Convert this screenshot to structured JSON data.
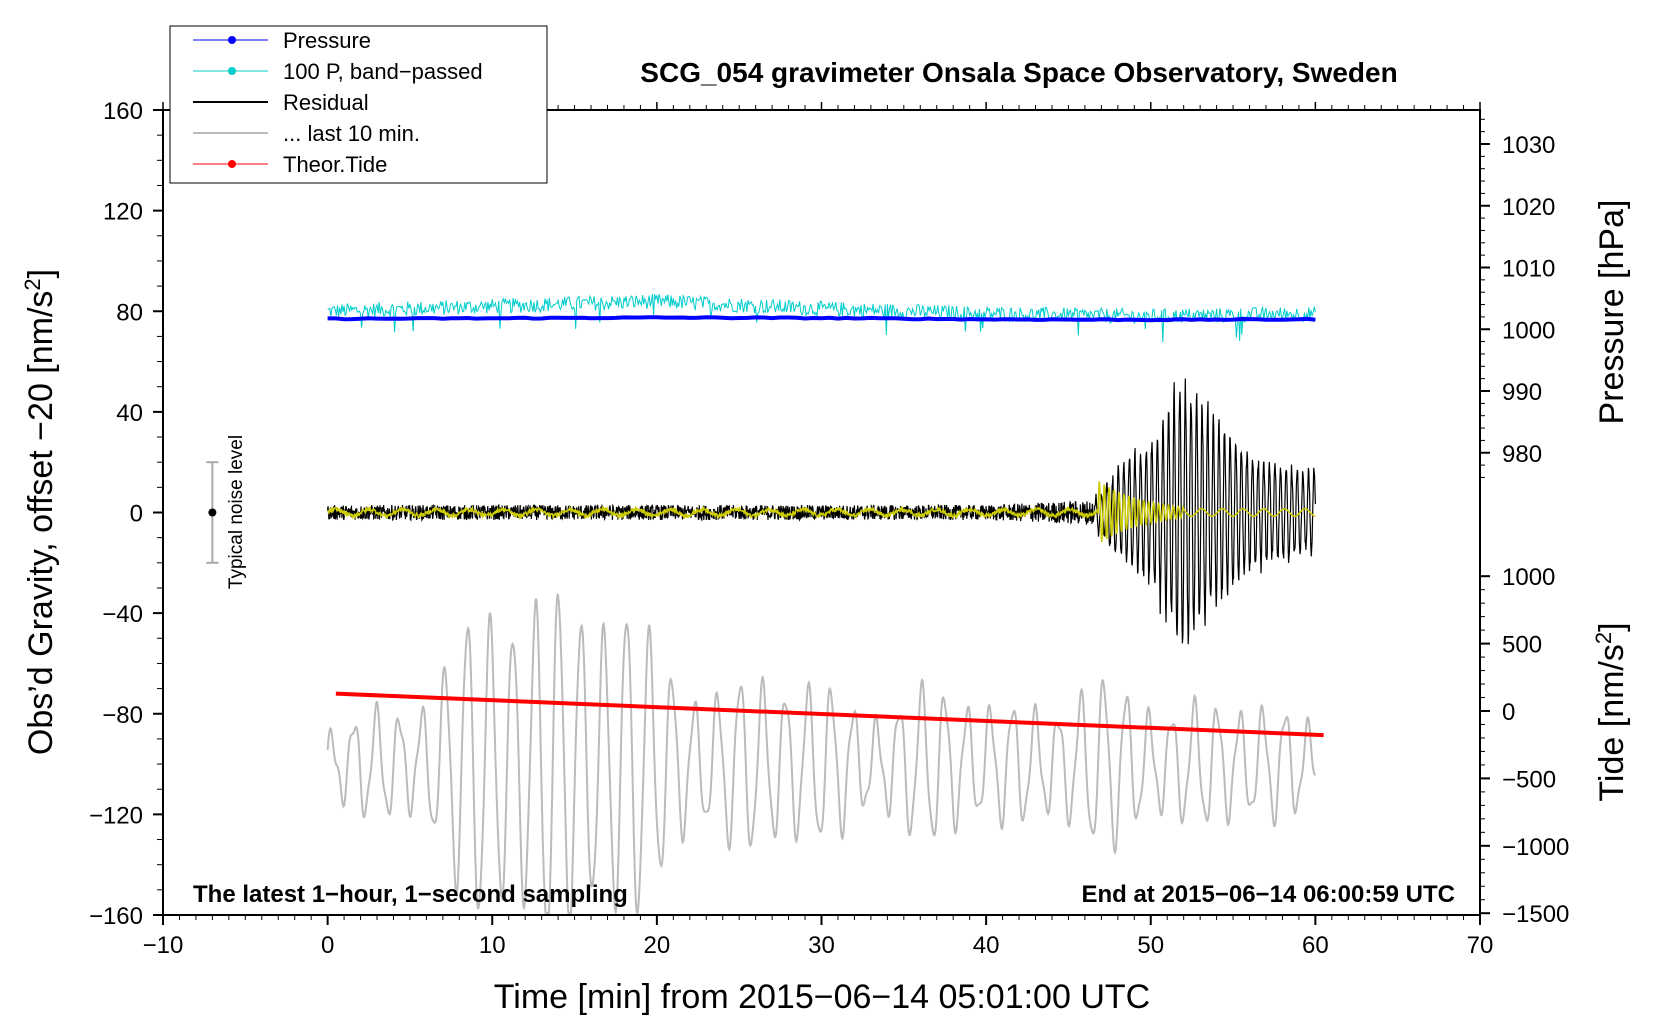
{
  "chart_data": {
    "type": "line",
    "title": "SCG_054 gravimeter Onsala Space Observatory, Sweden",
    "xlabel": "Time [min] from 2015−06−14 05:01:00 UTC",
    "ylabel_left_prefix": "Obs’d Gravity, offset −20 [nm/s",
    "ylabel_left_sup": "2",
    "ylabel_left_suffix": "]",
    "ylabel_pressure": "Pressure [hPa]",
    "ylabel_tide_prefix": "Tide [nm/s",
    "ylabel_tide_sup": "2",
    "ylabel_tide_suffix": "]",
    "xlim": [
      -10,
      70
    ],
    "ylim_left": [
      -160,
      160
    ],
    "x_ticks": [
      "−10",
      "0",
      "10",
      "20",
      "30",
      "40",
      "50",
      "60",
      "70"
    ],
    "y_ticks_left": [
      "160",
      "120",
      "80",
      "40",
      "0",
      "−40",
      "−80",
      "−120",
      "−160"
    ],
    "pressure_ticks": [
      "1030",
      "1020",
      "1010",
      "1000",
      "990",
      "980"
    ],
    "tide_ticks": [
      "1000",
      "500",
      "0",
      "−500",
      "−1000",
      "−1500"
    ],
    "corner_left": "The latest 1−hour, 1−second sampling",
    "corner_right": "End at 2015−06−14 06:00:59 UTC",
    "noise_label": "Typical noise level",
    "noise_bar": {
      "x": -7,
      "y": 0,
      "low": -20,
      "high": 20
    },
    "legend": [
      {
        "label": "Pressure",
        "color": "#0000ff",
        "marker": true,
        "width": 1
      },
      {
        "label": "100 P, band−passed",
        "color": "#00cccc",
        "marker": true,
        "width": 1
      },
      {
        "label": "Residual",
        "color": "#000000",
        "marker": false,
        "width": 2
      },
      {
        "label": "... last 10 min.",
        "color": "#bbbbbb",
        "marker": false,
        "width": 2
      },
      {
        "label": "Theor.Tide",
        "color": "#ff0000",
        "marker": true,
        "width": 1
      }
    ],
    "series": [
      {
        "name": "Pressure",
        "color": "#0000ff",
        "values_desc": "approx flat ~1001 hPa, shown at 77 on left axis",
        "x": [
          0,
          10,
          20,
          30,
          40,
          50,
          60
        ],
        "y": [
          77,
          77.2,
          77.5,
          77.3,
          76.8,
          76.6,
          76.8
        ]
      },
      {
        "name": "100 P, band−passed",
        "color": "#00cccc",
        "x": [
          0,
          10,
          20,
          30,
          40,
          50,
          60
        ],
        "y": [
          80,
          82,
          84,
          81,
          79,
          78,
          79
        ]
      },
      {
        "name": "Residual",
        "color": "#000000",
        "x": [
          0,
          10,
          20,
          30,
          40,
          46.5,
          48,
          50,
          52,
          54,
          56,
          58,
          60
        ],
        "y": [
          0,
          0,
          0,
          0,
          0,
          0,
          0,
          0,
          0,
          0,
          0,
          0,
          0
        ],
        "amplitude": [
          3,
          3,
          3,
          3,
          3,
          5,
          20,
          30,
          60,
          40,
          25,
          20,
          18
        ]
      },
      {
        "name": "... last 10 min.",
        "color": "#bbbbbb",
        "x": [
          0,
          5,
          10,
          13,
          17,
          20,
          30,
          40,
          50,
          60
        ],
        "y": [
          -100,
          -100,
          -100,
          -100,
          -100,
          -100,
          -100,
          -100,
          -100,
          -100
        ],
        "amplitude": [
          10,
          25,
          50,
          70,
          60,
          35,
          25,
          22,
          25,
          15
        ]
      },
      {
        "name": "Theor.Tide",
        "color": "#ff0000",
        "x": [
          0.5,
          60.5
        ],
        "y": [
          -72,
          -88.5
        ]
      }
    ]
  }
}
